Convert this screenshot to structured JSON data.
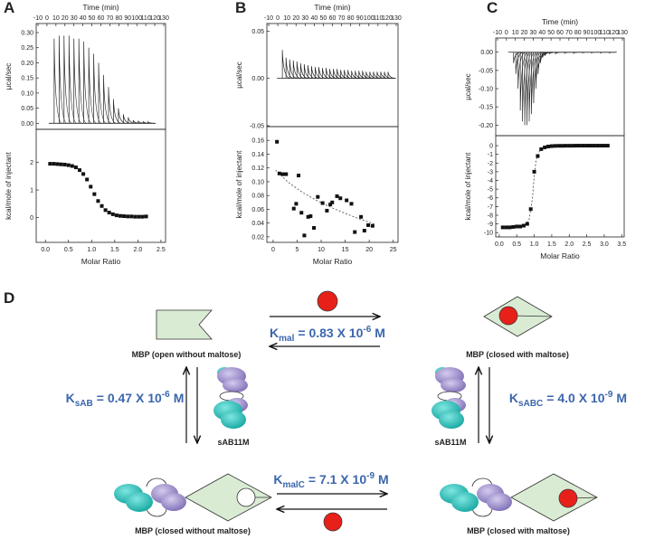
{
  "chart_data": [
    {
      "type": "stem",
      "panel": "A",
      "xlabel": "Time (min)",
      "ylabel": "µcal/sec",
      "xlim": [
        -12,
        132
      ],
      "xticks": [
        -10,
        0,
        10,
        20,
        30,
        40,
        50,
        60,
        70,
        80,
        90,
        100,
        110,
        120,
        130
      ],
      "ylim": [
        -0.02,
        0.33
      ],
      "yticks": [
        {
          "value": 0,
          "label": "0.00"
        },
        {
          "value": 0.05,
          "label": "0.05"
        },
        {
          "value": 0.1,
          "label": "0.10"
        },
        {
          "value": 0.15,
          "label": "0.15"
        },
        {
          "value": 0.2,
          "label": "0.20"
        },
        {
          "value": 0.25,
          "label": "0.25"
        },
        {
          "value": 0.3,
          "label": "0.30"
        }
      ],
      "x": [
        8,
        13.5,
        19,
        24.5,
        30,
        35.5,
        41,
        46.5,
        52,
        57.5,
        63,
        68.5,
        74,
        79.5,
        85,
        90.5,
        96,
        101.5,
        107,
        112.5
      ],
      "values": [
        0.28,
        0.29,
        0.29,
        0.29,
        0.28,
        0.28,
        0.27,
        0.25,
        0.23,
        0.2,
        0.16,
        0.12,
        0.08,
        0.05,
        0.03,
        0.02,
        0.01,
        0.008,
        0.006,
        0.005
      ],
      "color": "#222222"
    },
    {
      "type": "scatter",
      "xlabel": "Molar Ratio",
      "ylabel": "kcal/mole of injectant",
      "xlim": [
        -0.2,
        2.6
      ],
      "xticks": [
        {
          "value": 0,
          "label": "0.0"
        },
        0.5,
        {
          "value": 1,
          "label": "1.0"
        },
        1.5,
        {
          "value": 2,
          "label": "2.0"
        },
        2.5
      ],
      "ylim": [
        -0.9,
        3.2
      ],
      "yticks": [
        0,
        1,
        2
      ],
      "x": [
        0.1,
        0.18,
        0.26,
        0.34,
        0.42,
        0.5,
        0.58,
        0.66,
        0.74,
        0.82,
        0.9,
        0.98,
        1.06,
        1.14,
        1.22,
        1.3,
        1.38,
        1.46,
        1.54,
        1.62,
        1.7,
        1.78,
        1.86,
        1.94,
        2.02,
        2.1,
        2.18
      ],
      "values": [
        1.95,
        1.95,
        1.94,
        1.93,
        1.92,
        1.9,
        1.87,
        1.82,
        1.72,
        1.58,
        1.38,
        1.12,
        0.85,
        0.6,
        0.42,
        0.27,
        0.18,
        0.12,
        0.08,
        0.06,
        0.05,
        0.04,
        0.04,
        0.03,
        0.03,
        0.03,
        0.04
      ],
      "color": "#111111"
    },
    {
      "type": "stem",
      "panel": "B",
      "xlabel": "Time (min)",
      "ylabel": "µcal/sec",
      "xlim": [
        -12,
        132
      ],
      "xticks": [
        -10,
        0,
        10,
        20,
        30,
        40,
        50,
        60,
        70,
        80,
        90,
        100,
        110,
        120,
        130
      ],
      "ylim": [
        -0.051,
        0.058
      ],
      "yticks": [
        {
          "value": -0.05,
          "label": "-0.05"
        },
        {
          "value": 0,
          "label": "0.00"
        },
        {
          "value": 0.05,
          "label": "0.05"
        }
      ],
      "x": [
        5,
        9,
        13,
        17,
        21,
        25,
        29,
        33,
        37,
        41,
        45,
        49,
        53,
        57,
        61,
        65,
        69,
        73,
        77,
        81,
        85,
        89,
        93,
        97,
        101,
        105,
        109,
        113,
        117,
        121
      ],
      "values": [
        0.03,
        0.022,
        0.02,
        0.019,
        0.018,
        0.016,
        0.015,
        0.014,
        0.013,
        0.012,
        0.012,
        0.011,
        0.011,
        0.01,
        0.01,
        0.01,
        0.009,
        0.009,
        0.009,
        0.008,
        0.008,
        0.008,
        0.008,
        0.007,
        0.007,
        0.007,
        0.007,
        0.007,
        0.007,
        0.007
      ],
      "color": "#222222"
    },
    {
      "type": "scatter",
      "xlabel": "Molar Ratio",
      "ylabel": "kcal/mole of injectant",
      "xlim": [
        -1.3,
        26
      ],
      "xticks": [
        0,
        5,
        10,
        15,
        20,
        25
      ],
      "ylim": [
        0.012,
        0.18
      ],
      "yticks": [
        0.02,
        0.04,
        0.06,
        0.08,
        {
          "value": 0.1,
          "label": "0.10"
        },
        0.12,
        0.14,
        0.16
      ],
      "x": [
        0.8,
        1.3,
        2,
        2.7,
        4.3,
        4.8,
        5.3,
        5.9,
        6.5,
        7.3,
        7.8,
        8.5,
        9.3,
        10.3,
        11.2,
        11.9,
        12.3,
        13.3,
        14,
        15.3,
        16.3,
        17,
        18.3,
        19,
        19.8,
        20.7
      ],
      "values": [
        0.158,
        0.112,
        0.111,
        0.111,
        0.061,
        0.068,
        0.109,
        0.055,
        0.022,
        0.049,
        0.05,
        0.033,
        0.078,
        0.069,
        0.058,
        0.067,
        0.07,
        0.079,
        0.076,
        0.073,
        0.068,
        0.027,
        0.049,
        0.029,
        0.037,
        0.036
      ],
      "fit": {
        "x": [
          0.5,
          3,
          6,
          9,
          12,
          15,
          18,
          21
        ],
        "values": [
          0.117,
          0.1,
          0.085,
          0.073,
          0.063,
          0.054,
          0.046,
          0.039
        ]
      },
      "color": "#111111"
    },
    {
      "type": "stem",
      "panel": "C",
      "xlabel": "Time (min)",
      "ylabel": "µcal/sec",
      "xlim": [
        -12,
        132
      ],
      "xticks": [
        -10,
        0,
        10,
        20,
        30,
        40,
        50,
        60,
        70,
        80,
        90,
        100,
        110,
        120,
        130
      ],
      "ylim": [
        -0.229,
        0.039
      ],
      "yticks": [
        {
          "value": -0.2,
          "label": "-0.20"
        },
        {
          "value": -0.15,
          "label": "-0.15"
        },
        {
          "value": -0.1,
          "label": "-0.10"
        },
        {
          "value": -0.05,
          "label": "-0.05"
        },
        {
          "value": 0,
          "label": "0.00"
        }
      ],
      "x": [
        8,
        10.5,
        13,
        15.5,
        18,
        20.5,
        23,
        25.5,
        28,
        30.5,
        33,
        35.5,
        38,
        40.5,
        43,
        48,
        55,
        65,
        75,
        85,
        95,
        105,
        115
      ],
      "values": [
        -0.03,
        -0.06,
        -0.1,
        -0.16,
        -0.19,
        -0.2,
        -0.2,
        -0.19,
        -0.17,
        -0.14,
        -0.1,
        -0.06,
        -0.03,
        -0.015,
        -0.01,
        -0.005,
        -0.004,
        -0.003,
        -0.003,
        -0.002,
        -0.002,
        -0.002,
        -0.002
      ],
      "color": "#222222"
    },
    {
      "type": "scatter",
      "xlabel": "Molar Ratio",
      "ylabel": "kcal/mole of injectant",
      "xlim": [
        -0.1,
        3.57
      ],
      "xticks": [
        {
          "value": 0,
          "label": "0.0"
        },
        0.5,
        {
          "value": 1,
          "label": "1.0"
        },
        1.5,
        {
          "value": 2,
          "label": "2.0"
        },
        2.5,
        {
          "value": 3,
          "label": "3.0"
        },
        3.5
      ],
      "ylim": [
        -10.5,
        1.15
      ],
      "yticks": [
        -10,
        -9,
        -8,
        -7,
        -6,
        -5,
        -4,
        -3,
        -2,
        -1,
        0
      ],
      "x": [
        0.1,
        0.2,
        0.3,
        0.4,
        0.5,
        0.6,
        0.7,
        0.8,
        0.9,
        1.0,
        1.1,
        1.2,
        1.3,
        1.4,
        1.5,
        1.6,
        1.7,
        1.8,
        1.9,
        2.0,
        2.1,
        2.2,
        2.3,
        2.4,
        2.5,
        2.6,
        2.7,
        2.8,
        2.9,
        3.0,
        3.1
      ],
      "values": [
        -9.4,
        -9.4,
        -9.4,
        -9.35,
        -9.3,
        -9.3,
        -9.2,
        -9.0,
        -7.3,
        -3.0,
        -1.2,
        -0.4,
        -0.2,
        -0.1,
        -0.05,
        -0.03,
        -0.02,
        -0.02,
        -0.01,
        -0.01,
        -0.01,
        0,
        0,
        0,
        0,
        0,
        0,
        0,
        0,
        0,
        0
      ],
      "fit": {
        "x": [
          0.1,
          0.7,
          0.85,
          0.95,
          1.0,
          1.05,
          1.15,
          1.3,
          3.1
        ],
        "values": [
          -9.4,
          -9.2,
          -8.6,
          -6,
          -3.5,
          -1.7,
          -0.6,
          -0.15,
          0
        ]
      },
      "color": "#111111"
    }
  ],
  "diagram": {
    "label": "D",
    "states": [
      {
        "caption": "MBP (open without maltose)"
      },
      {
        "caption": "MBP (closed with maltose)"
      },
      {
        "caption": "MBP (closed without maltose)"
      },
      {
        "caption": "MBP (closed with maltose)"
      }
    ],
    "antibody_labels": [
      "sAB11M",
      "sAB11M"
    ],
    "constants": [
      {
        "symbol": "K",
        "sub": "mal",
        "value": "= 0.83 X 10",
        "exp": "-6",
        "unit": "M"
      },
      {
        "symbol": "K",
        "sub": "sAB",
        "value": "= 0.47 X 10",
        "exp": "-6",
        "unit": "M"
      },
      {
        "symbol": "K",
        "sub": "sABC",
        "value": "= 4.0 X 10",
        "exp": "-9",
        "unit": "M"
      },
      {
        "symbol": "K",
        "sub": "malC",
        "value": "= 7.1 X 10",
        "exp": "-9",
        "unit": "M"
      }
    ]
  }
}
